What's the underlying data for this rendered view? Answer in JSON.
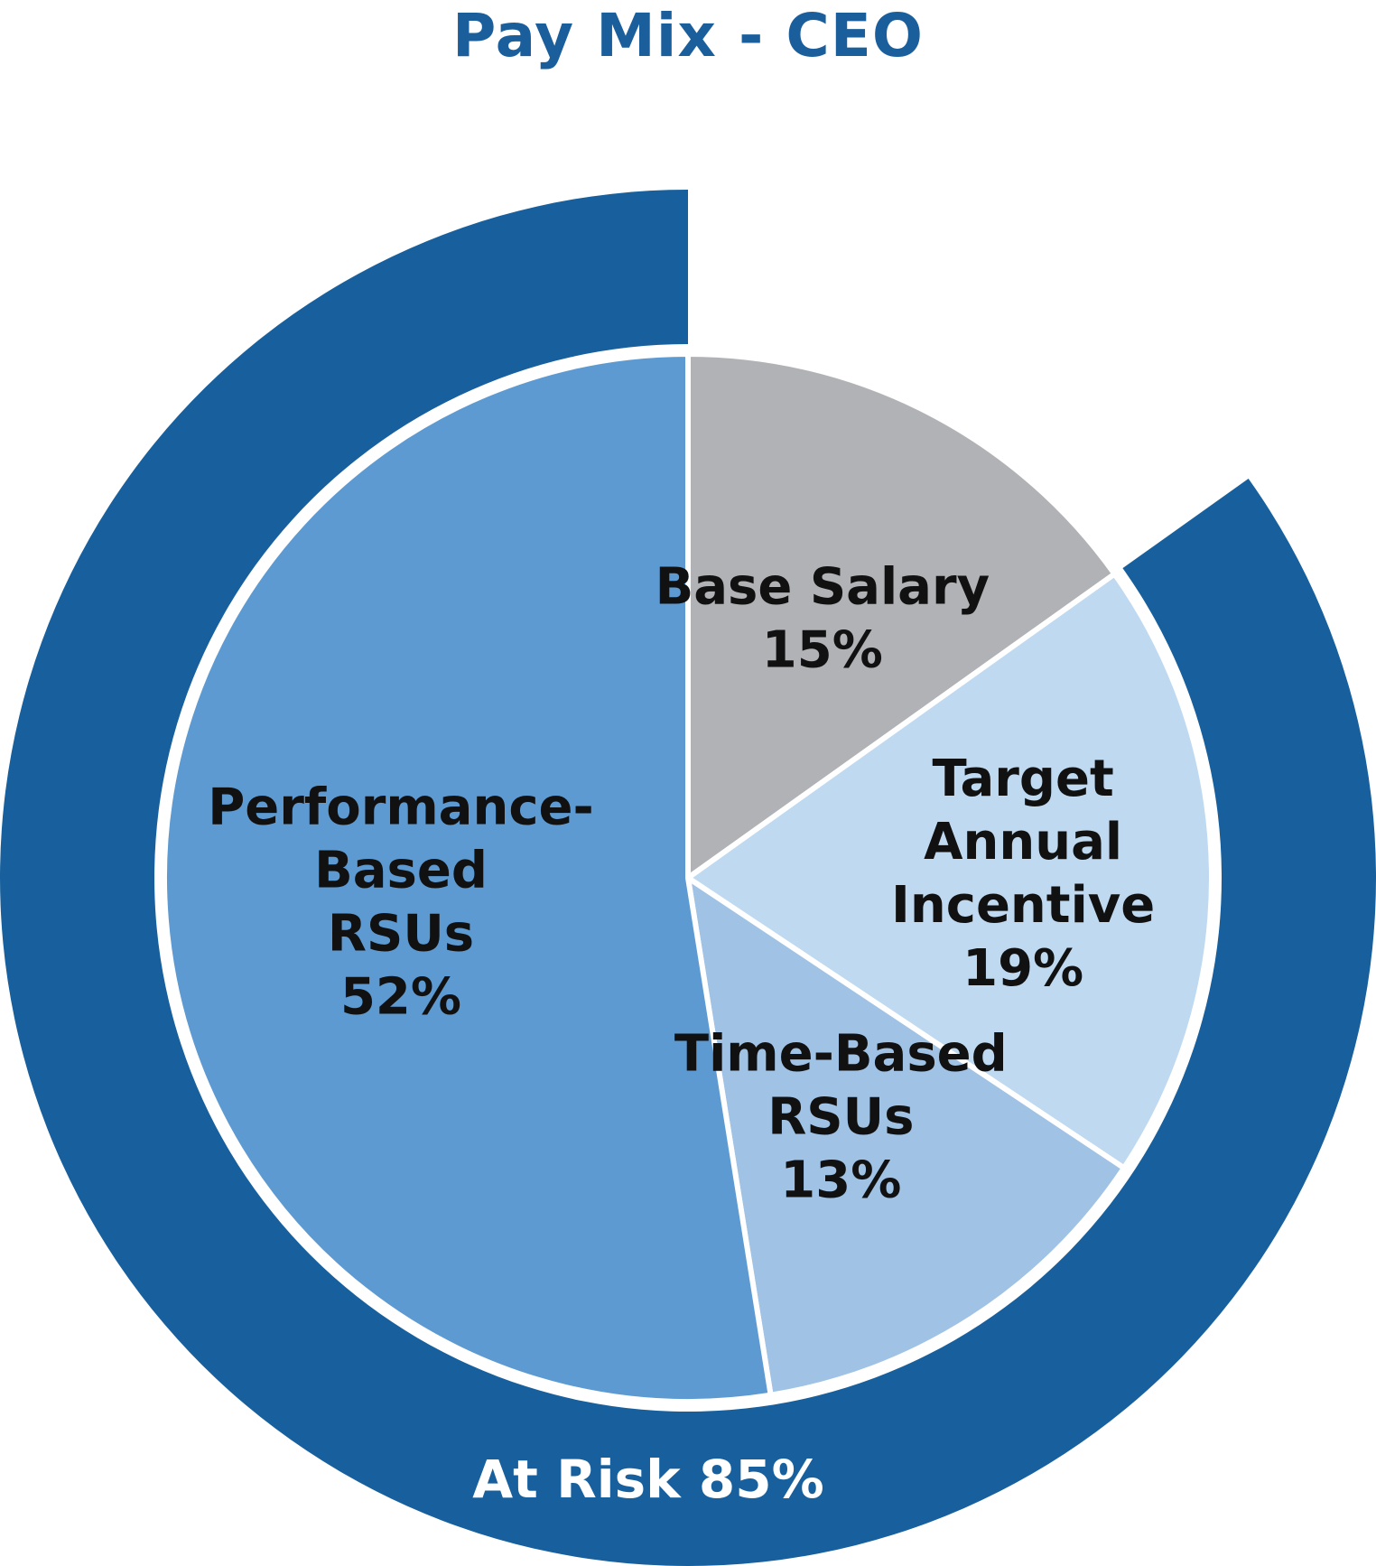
{
  "chart_data": {
    "type": "pie",
    "title": "Pay Mix - CEO",
    "slices": [
      {
        "label_lines": [
          "Base Salary",
          "15%"
        ],
        "value": 15,
        "color": "#b1b2b5"
      },
      {
        "label_lines": [
          "Target",
          "Annual",
          "Incentive",
          "19%"
        ],
        "value": 19,
        "color": "#bfd9f1"
      },
      {
        "label_lines": [
          "Time-Based",
          "RSUs",
          "13%"
        ],
        "value": 13,
        "color": "#9fc2e5"
      },
      {
        "label_lines": [
          "Performance-",
          "Based",
          "RSUs",
          "52%"
        ],
        "value": 52,
        "color": "#5d9ad2"
      }
    ],
    "outer_ring": {
      "label": "At Risk 85%",
      "value": 85,
      "color": "#17609d"
    }
  }
}
